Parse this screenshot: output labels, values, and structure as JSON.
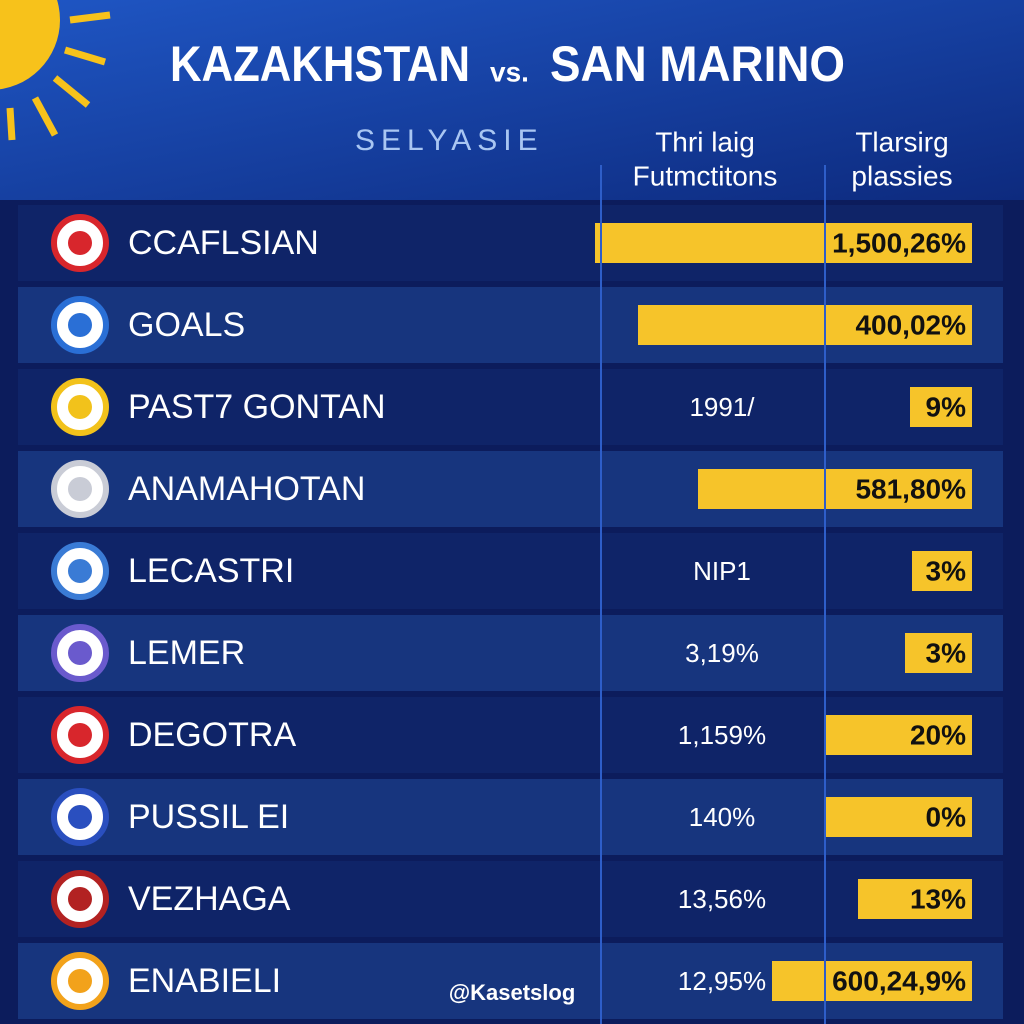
{
  "header": {
    "team_home": "KAZAKHSTAN",
    "versus": "vs.",
    "team_away": "SAN MARINO",
    "subtitle": "SELYASIE",
    "columns": [
      [
        "Thri laig",
        "Futmctitons"
      ],
      [
        "Tlarsirg",
        "plassies"
      ]
    ]
  },
  "table": {
    "rows": [
      {
        "name": "CCAFLSIAN",
        "share": "1,500,26%"
      },
      {
        "name": "GOALS",
        "share": "400,02%"
      },
      {
        "name": "PAST7 GONTAN",
        "stat": "1991/",
        "share": "9%"
      },
      {
        "name": "ANAMAHOTAN",
        "share": "581,80%"
      },
      {
        "name": "LECASTRI",
        "stat": "NIP1",
        "share": "3%"
      },
      {
        "name": "LEMER",
        "stat": "3,19%",
        "share": "3%"
      },
      {
        "name": "DEGOTRA",
        "stat": "1,159%",
        "share": "20%"
      },
      {
        "name": "PUSSIL EI",
        "stat": "140%",
        "share": "0%"
      },
      {
        "name": "VEZHAGA",
        "stat": "13,56%",
        "share": "13%"
      },
      {
        "name": "ENABIELI",
        "stat": "12,95%",
        "share": "600,24,9%"
      }
    ]
  },
  "watermark": "@Kasetslog"
}
